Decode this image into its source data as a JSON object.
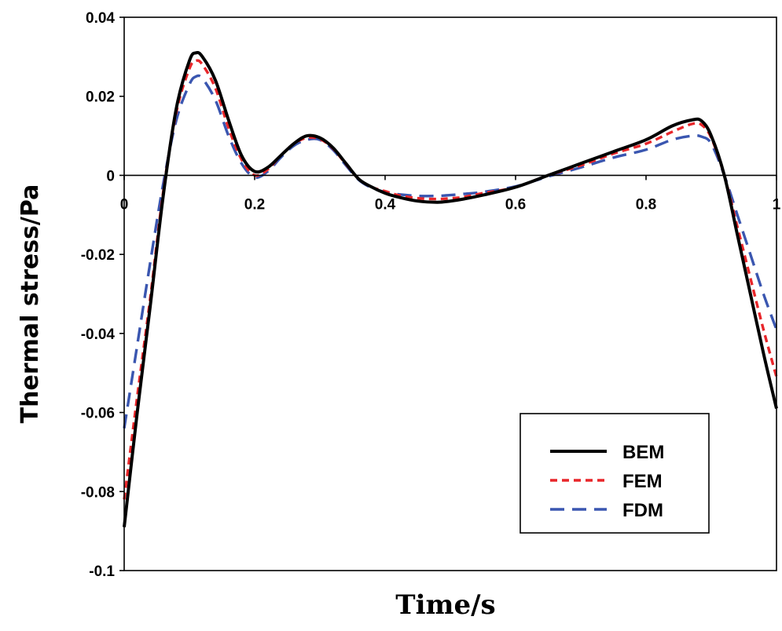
{
  "chart_data": {
    "type": "line",
    "title": "",
    "xlabel": "Time/s",
    "ylabel": "Thermal stress/Pa",
    "xlim": [
      0,
      1
    ],
    "ylim": [
      -0.1,
      0.04
    ],
    "xticks": [
      0,
      0.2,
      0.4,
      0.6,
      0.8,
      1
    ],
    "xtick_labels": [
      "0",
      "0.2",
      "0.4",
      "0.6",
      "0.8",
      "1"
    ],
    "yticks": [
      0.04,
      0.02,
      0,
      -0.02,
      -0.04,
      -0.06,
      -0.08,
      -0.1
    ],
    "ytick_labels": [
      "0.04",
      "0.02",
      "0",
      "-0.02",
      "-0.04",
      "-0.06",
      "-0.08",
      "-0.1"
    ],
    "grid": false,
    "legend_position": "bottom-right",
    "series": [
      {
        "name": "BEM",
        "color": "#000000",
        "style": "solid",
        "x": [
          0,
          0.02,
          0.04,
          0.06,
          0.08,
          0.1,
          0.11,
          0.12,
          0.14,
          0.16,
          0.18,
          0.2,
          0.22,
          0.24,
          0.26,
          0.28,
          0.3,
          0.32,
          0.34,
          0.36,
          0.38,
          0.4,
          0.42,
          0.45,
          0.48,
          0.5,
          0.52,
          0.55,
          0.6,
          0.65,
          0.7,
          0.75,
          0.8,
          0.84,
          0.87,
          0.885,
          0.9,
          0.92,
          0.94,
          0.96,
          0.98,
          1.0
        ],
        "y": [
          -0.089,
          -0.06,
          -0.033,
          -0.005,
          0.017,
          0.029,
          0.031,
          0.03,
          0.024,
          0.014,
          0.005,
          0.001,
          0.002,
          0.005,
          0.008,
          0.01,
          0.0095,
          0.007,
          0.003,
          -0.001,
          -0.003,
          -0.0045,
          -0.0055,
          -0.0065,
          -0.0068,
          -0.0065,
          -0.006,
          -0.005,
          -0.003,
          0.0,
          0.003,
          0.006,
          0.009,
          0.0125,
          0.014,
          0.0138,
          0.01,
          0.0,
          -0.015,
          -0.03,
          -0.045,
          -0.059
        ]
      },
      {
        "name": "FEM",
        "color": "#e8262a",
        "style": "dashed",
        "x": [
          0,
          0.02,
          0.04,
          0.06,
          0.08,
          0.1,
          0.11,
          0.12,
          0.14,
          0.16,
          0.18,
          0.2,
          0.22,
          0.24,
          0.26,
          0.28,
          0.3,
          0.32,
          0.34,
          0.36,
          0.38,
          0.4,
          0.42,
          0.45,
          0.48,
          0.5,
          0.52,
          0.55,
          0.6,
          0.65,
          0.7,
          0.75,
          0.8,
          0.84,
          0.87,
          0.885,
          0.9,
          0.92,
          0.94,
          0.96,
          0.98,
          1.0
        ],
        "y": [
          -0.082,
          -0.056,
          -0.031,
          -0.004,
          0.016,
          0.027,
          0.029,
          0.028,
          0.022,
          0.012,
          0.004,
          0.0,
          0.0015,
          0.005,
          0.008,
          0.0095,
          0.0092,
          0.0068,
          0.0028,
          -0.001,
          -0.003,
          -0.004,
          -0.005,
          -0.0058,
          -0.006,
          -0.0058,
          -0.0055,
          -0.0045,
          -0.003,
          0.0,
          0.0025,
          0.0055,
          0.008,
          0.011,
          0.013,
          0.0128,
          0.0095,
          0.0,
          -0.013,
          -0.026,
          -0.039,
          -0.051
        ]
      },
      {
        "name": "FDM",
        "color": "#3a56b0",
        "style": "longdash",
        "x": [
          0,
          0.02,
          0.04,
          0.06,
          0.08,
          0.1,
          0.11,
          0.12,
          0.14,
          0.16,
          0.18,
          0.2,
          0.22,
          0.24,
          0.26,
          0.28,
          0.3,
          0.32,
          0.34,
          0.36,
          0.38,
          0.4,
          0.42,
          0.45,
          0.48,
          0.5,
          0.52,
          0.55,
          0.6,
          0.65,
          0.7,
          0.75,
          0.8,
          0.84,
          0.87,
          0.885,
          0.9,
          0.92,
          0.94,
          0.96,
          0.98,
          1.0
        ],
        "y": [
          -0.064,
          -0.043,
          -0.022,
          -0.002,
          0.014,
          0.023,
          0.025,
          0.0245,
          0.019,
          0.01,
          0.003,
          -0.0005,
          0.001,
          0.0045,
          0.0075,
          0.009,
          0.009,
          0.0065,
          0.0025,
          -0.0012,
          -0.0032,
          -0.0042,
          -0.0048,
          -0.0052,
          -0.0052,
          -0.005,
          -0.0047,
          -0.0042,
          -0.0028,
          -0.0003,
          0.002,
          0.0045,
          0.0065,
          0.009,
          0.01,
          0.0098,
          0.008,
          0.0,
          -0.01,
          -0.02,
          -0.03,
          -0.039
        ]
      }
    ]
  }
}
